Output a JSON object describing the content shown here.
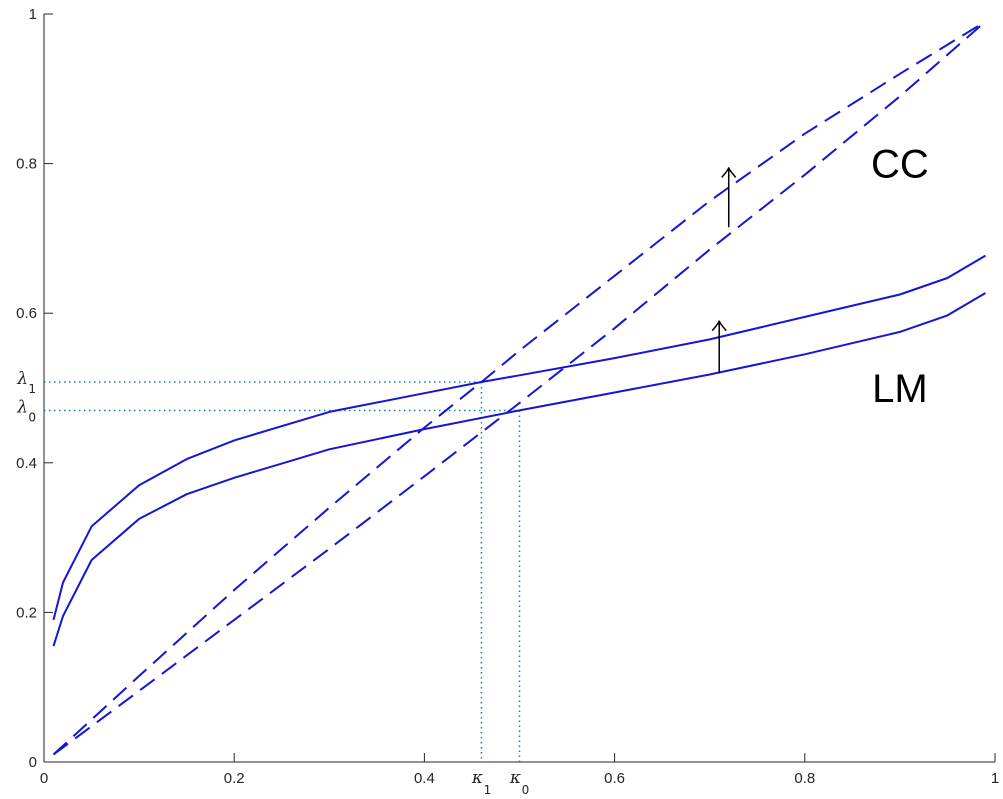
{
  "chart_data": {
    "type": "line",
    "title": "",
    "xlabel": "",
    "ylabel": "",
    "xlim": [
      0,
      1
    ],
    "ylim": [
      0,
      1
    ],
    "grid": false,
    "x_ticks": [
      "0",
      "0.2",
      "0.4",
      "0.6",
      "0.8",
      "1"
    ],
    "y_ticks": [
      "0",
      "0.2",
      "0.4",
      "0.6",
      "0.8",
      "1"
    ],
    "series": [
      {
        "label": "CC",
        "style": "dashed",
        "x": [
          0.01,
          0.1,
          0.2,
          0.3,
          0.4,
          0.46,
          0.5,
          0.6,
          0.7,
          0.8,
          0.9,
          0.99
        ],
        "y": [
          0.01,
          0.115,
          0.23,
          0.34,
          0.447,
          0.508,
          0.55,
          0.65,
          0.75,
          0.84,
          0.92,
          0.99
        ]
      },
      {
        "style": "dashed",
        "x": [
          0.01,
          0.1,
          0.2,
          0.3,
          0.4,
          0.5,
          0.6,
          0.7,
          0.8,
          0.9,
          0.99
        ],
        "y": [
          0.01,
          0.095,
          0.19,
          0.285,
          0.382,
          0.48,
          0.58,
          0.685,
          0.785,
          0.89,
          0.99
        ]
      },
      {
        "style": "solid",
        "x": [
          0.01,
          0.02,
          0.05,
          0.1,
          0.15,
          0.2,
          0.3,
          0.4,
          0.46,
          0.5,
          0.6,
          0.7,
          0.8,
          0.9,
          0.95,
          0.99
        ],
        "y": [
          0.19,
          0.24,
          0.315,
          0.37,
          0.405,
          0.43,
          0.468,
          0.493,
          0.508,
          0.517,
          0.54,
          0.565,
          0.595,
          0.625,
          0.647,
          0.677
        ]
      },
      {
        "label": "LM",
        "style": "solid",
        "x": [
          0.01,
          0.02,
          0.05,
          0.1,
          0.15,
          0.2,
          0.3,
          0.4,
          0.5,
          0.6,
          0.7,
          0.8,
          0.9,
          0.95,
          0.99
        ],
        "y": [
          0.155,
          0.195,
          0.27,
          0.325,
          0.358,
          0.38,
          0.418,
          0.445,
          0.47,
          0.494,
          0.518,
          0.545,
          0.575,
          0.597,
          0.627
        ]
      }
    ],
    "annotations": {
      "equilibria": [
        {
          "x": 0.46,
          "y": 0.508,
          "x_label": "κ",
          "x_sub": "1",
          "y_label": "λ",
          "y_sub": "1"
        },
        {
          "x": 0.5,
          "y": 0.47,
          "x_label": "κ",
          "x_sub": "0",
          "y_label": "λ",
          "y_sub": "0"
        }
      ],
      "shift_arrows": [
        {
          "x": 0.72,
          "y_from": 0.715,
          "y_to": 0.795
        },
        {
          "x": 0.71,
          "y_from": 0.52,
          "y_to": 0.59
        }
      ],
      "curve_text": [
        {
          "text": "CC",
          "x": 0.9,
          "y": 0.8
        },
        {
          "text": "LM",
          "x": 0.9,
          "y": 0.5
        }
      ]
    },
    "colors": {
      "curves": "#1515d6",
      "guides": "#1a7fae",
      "axes": "#262626",
      "arrows": "#000000"
    }
  }
}
